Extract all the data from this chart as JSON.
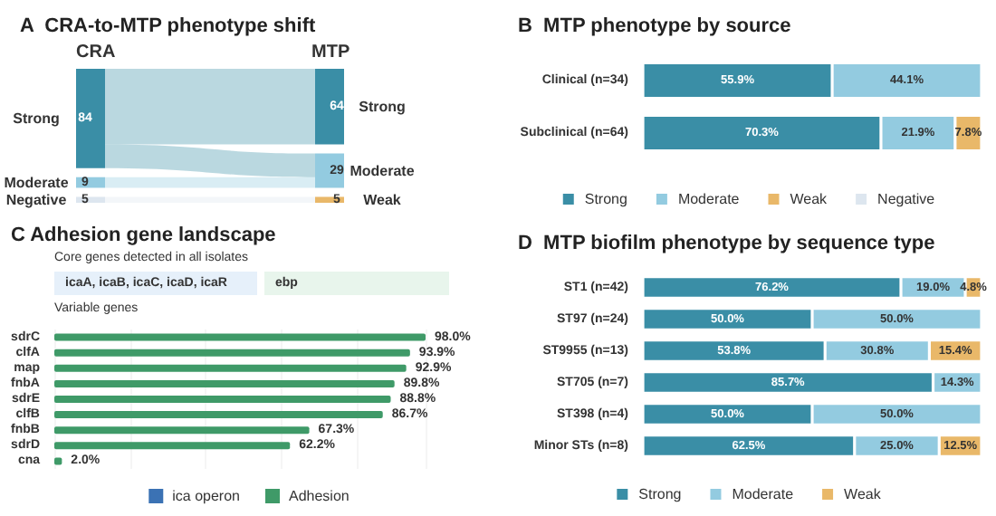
{
  "chart_data": [
    {
      "type": "other",
      "title": "A  CRA-to-MTP phenotype shift",
      "data_labels": true,
      "categories": [
        "Strong",
        "Moderate",
        "Negative",
        "Weak"
      ],
      "series": [
        {
          "name": "CRA",
          "values": [
            84,
            9,
            5,
            null
          ],
          "colors": [
            "#3a8ea6",
            "#93cbe0",
            "#dde6ef",
            null
          ]
        },
        {
          "name": "MTP",
          "values": [
            64,
            29,
            null,
            5
          ],
          "colors": [
            "#3a8ea6",
            "#93cbe0",
            null,
            "#e9b869"
          ]
        }
      ]
    },
    {
      "type": "bar",
      "title": "B  MTP phenotype by source",
      "orientation": "horizontal",
      "stacked": true,
      "legend": "bottom",
      "categories": [
        "Clinical (n=34)",
        "Subclinical (n=64)"
      ],
      "series": [
        {
          "name": "Strong",
          "color": "#3a8ea6",
          "values": [
            55.9,
            70.3
          ],
          "value_labels": [
            "55.9%",
            "70.3%"
          ]
        },
        {
          "name": "Moderate",
          "color": "#93cbe0",
          "values": [
            44.1,
            21.9
          ],
          "value_labels": [
            "44.1%",
            "21.9%"
          ]
        },
        {
          "name": "Weak",
          "color": "#e9b869",
          "values": [
            null,
            7.8
          ],
          "value_labels": [
            null,
            "7.8%"
          ]
        },
        {
          "name": "Negative",
          "color": "#dde6ef",
          "values": [
            null,
            null
          ],
          "value_labels": [
            null,
            null
          ]
        }
      ]
    },
    {
      "type": "other",
      "title": "C  Adhesion gene landscape",
      "annotations": [
        "Core genes detected in all isolates",
        "icaA, icaB, icaC, icaD, icaR",
        "ebp",
        "Variable genes"
      ]
    },
    {
      "type": "bar",
      "orientation": "horizontal",
      "legend": "bottom",
      "grid": "x",
      "categories": [
        "sdrC",
        "clfA",
        "map",
        "fnbA",
        "sdrE",
        "clfB",
        "fnbB",
        "sdrD",
        "cna"
      ],
      "series": [
        {
          "name": "ica operon",
          "color": "#3b72b4",
          "values": [
            null,
            null,
            null,
            null,
            null,
            null,
            null,
            null,
            null
          ],
          "value_labels": [
            null,
            null,
            null,
            null,
            null,
            null,
            null,
            null,
            null
          ]
        },
        {
          "name": "Adhesion",
          "color": "#3f9a68",
          "values": [
            98.0,
            93.9,
            92.9,
            89.8,
            88.8,
            86.7,
            67.3,
            62.2,
            2.0
          ],
          "value_labels": [
            "98.0%",
            "93.9%",
            "92.9%",
            "89.8%",
            "88.8%",
            "86.7%",
            "67.3%",
            "62.2%",
            "2.0%"
          ]
        }
      ]
    },
    {
      "type": "bar",
      "title": "D  MTP biofilm phenotype by sequence type",
      "orientation": "horizontal",
      "stacked": true,
      "legend": "bottom",
      "categories": [
        "ST1 (n=42)",
        "ST97 (n=24)",
        "ST9955 (n=13)",
        "ST705 (n=7)",
        "ST398 (n=4)",
        "Minor STs (n=8)"
      ],
      "series": [
        {
          "name": "Strong",
          "color": "#3a8ea6",
          "values": [
            76.2,
            50.0,
            53.8,
            85.7,
            50.0,
            62.5
          ],
          "value_labels": [
            "76.2%",
            "50.0%",
            "53.8%",
            "85.7%",
            "50.0%",
            "62.5%"
          ]
        },
        {
          "name": "Moderate",
          "color": "#93cbe0",
          "values": [
            19.0,
            50.0,
            30.8,
            14.3,
            50.0,
            25.0
          ],
          "value_labels": [
            "19.0%",
            "50.0%",
            "30.8%",
            "14.3%",
            "50.0%",
            "25.0%"
          ]
        },
        {
          "name": "Weak",
          "color": "#e9b869",
          "values": [
            4.8,
            null,
            15.4,
            null,
            null,
            12.5
          ],
          "value_labels": [
            "4.8%",
            null,
            "15.4%",
            null,
            null,
            "12.5%"
          ]
        }
      ]
    }
  ]
}
